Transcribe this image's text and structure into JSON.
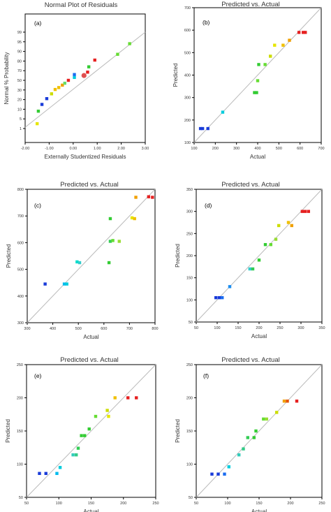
{
  "chart_data": [
    {
      "panel": "(a)",
      "type": "scatter",
      "title": "Normal Plot of Residuals",
      "xlabel": "Externally Studentized Residuals",
      "ylabel": "Normal % Probability",
      "xlim": [
        -2.0,
        3.0
      ],
      "xticks": [
        "-2.00",
        "-1.00",
        "0.00",
        "1.00",
        "2.00",
        "3.00"
      ],
      "yticks": [
        "1",
        "5",
        "10",
        "20",
        "30",
        "50",
        "70",
        "80",
        "90",
        "95",
        "99"
      ],
      "grid": false,
      "fit_line": [
        [
          -2.0,
          1.5
        ],
        [
          3.0,
          99.5
        ]
      ],
      "points": [
        {
          "x": -1.5,
          "y": 3,
          "color": "#e6e600"
        },
        {
          "x": -1.45,
          "y": 9,
          "color": "#33cc33"
        },
        {
          "x": -1.3,
          "y": 15,
          "color": "#1a3cd9"
        },
        {
          "x": -1.1,
          "y": 21,
          "color": "#1a3cd9"
        },
        {
          "x": -0.9,
          "y": 26,
          "color": "#ccdd00"
        },
        {
          "x": -0.75,
          "y": 31,
          "color": "#f0c000"
        },
        {
          "x": -0.6,
          "y": 35,
          "color": "#f0c000"
        },
        {
          "x": -0.45,
          "y": 40,
          "color": "#f0a000"
        },
        {
          "x": -0.35,
          "y": 44,
          "color": "#66dd66"
        },
        {
          "x": -0.2,
          "y": 50,
          "color": "#e62020"
        },
        {
          "x": 0.05,
          "y": 56,
          "color": "#00ccdd"
        },
        {
          "x": 0.05,
          "y": 62,
          "color": "#1a6cf0"
        },
        {
          "x": 0.45,
          "y": 60,
          "color": "#e05050",
          "large": true
        },
        {
          "x": 0.6,
          "y": 67,
          "color": "#e62020"
        },
        {
          "x": 0.65,
          "y": 74,
          "color": "#33cc33"
        },
        {
          "x": 0.9,
          "y": 81,
          "color": "#e62020"
        },
        {
          "x": 1.85,
          "y": 87,
          "color": "#66dd33"
        },
        {
          "x": 2.35,
          "y": 94,
          "color": "#66dd33"
        }
      ]
    },
    {
      "panel": "(b)",
      "type": "scatter",
      "title": "Predicted vs. Actual",
      "xlabel": "Actual",
      "ylabel": "Predicted",
      "xlim": [
        100,
        700
      ],
      "ylim": [
        100,
        700
      ],
      "ticks": [
        100,
        200,
        300,
        400,
        500,
        600,
        700
      ],
      "grid": false,
      "points": [
        {
          "x": 130,
          "y": 162,
          "color": "#1a3cd9"
        },
        {
          "x": 140,
          "y": 162,
          "color": "#1a3cd9"
        },
        {
          "x": 165,
          "y": 162,
          "color": "#1a3cd9"
        },
        {
          "x": 235,
          "y": 235,
          "color": "#00ccdd"
        },
        {
          "x": 385,
          "y": 322,
          "color": "#33cc33"
        },
        {
          "x": 395,
          "y": 322,
          "color": "#33cc33"
        },
        {
          "x": 400,
          "y": 375,
          "color": "#66dd33"
        },
        {
          "x": 405,
          "y": 447,
          "color": "#33cc33"
        },
        {
          "x": 435,
          "y": 447,
          "color": "#66dd33"
        },
        {
          "x": 460,
          "y": 484,
          "color": "#ccdd00"
        },
        {
          "x": 480,
          "y": 533,
          "color": "#e6e600"
        },
        {
          "x": 520,
          "y": 533,
          "color": "#f0c000"
        },
        {
          "x": 550,
          "y": 555,
          "color": "#f0a000"
        },
        {
          "x": 595,
          "y": 590,
          "color": "#e62020"
        },
        {
          "x": 615,
          "y": 590,
          "color": "#e62020"
        },
        {
          "x": 625,
          "y": 590,
          "color": "#e62020"
        }
      ]
    },
    {
      "panel": "(c)",
      "type": "scatter",
      "title": "Predicted vs. Actual",
      "xlabel": "Actual",
      "ylabel": "Predicted",
      "xlim": [
        300,
        800
      ],
      "ylim": [
        300,
        800
      ],
      "ticks": [
        300,
        400,
        500,
        600,
        700,
        800
      ],
      "grid": false,
      "points": [
        {
          "x": 370,
          "y": 445,
          "color": "#1a3cd9"
        },
        {
          "x": 445,
          "y": 445,
          "color": "#00bbee"
        },
        {
          "x": 455,
          "y": 445,
          "color": "#00ccdd"
        },
        {
          "x": 495,
          "y": 528,
          "color": "#00ddcc"
        },
        {
          "x": 505,
          "y": 525,
          "color": "#33cccc"
        },
        {
          "x": 620,
          "y": 525,
          "color": "#33cc33"
        },
        {
          "x": 625,
          "y": 690,
          "color": "#33cc33"
        },
        {
          "x": 625,
          "y": 605,
          "color": "#33cc55"
        },
        {
          "x": 635,
          "y": 608,
          "color": "#66dd33"
        },
        {
          "x": 660,
          "y": 605,
          "color": "#99dd33"
        },
        {
          "x": 710,
          "y": 693,
          "color": "#e6e600"
        },
        {
          "x": 720,
          "y": 690,
          "color": "#f0c000"
        },
        {
          "x": 725,
          "y": 770,
          "color": "#f0a000"
        },
        {
          "x": 775,
          "y": 772,
          "color": "#e62020"
        },
        {
          "x": 790,
          "y": 770,
          "color": "#e62020"
        }
      ]
    },
    {
      "panel": "(d)",
      "type": "scatter",
      "title": "Predicted vs. Actual",
      "xlabel": "Actual",
      "ylabel": "Predicted",
      "xlim": [
        50,
        350
      ],
      "ylim": [
        50,
        350
      ],
      "ticks": [
        50,
        100,
        150,
        200,
        250,
        300,
        350
      ],
      "grid": false,
      "points": [
        {
          "x": 97,
          "y": 105,
          "color": "#1a3cd9"
        },
        {
          "x": 105,
          "y": 105,
          "color": "#1a3cd9"
        },
        {
          "x": 112,
          "y": 105,
          "color": "#1a6cf0"
        },
        {
          "x": 130,
          "y": 130,
          "color": "#1a8cf0"
        },
        {
          "x": 178,
          "y": 170,
          "color": "#33cccc"
        },
        {
          "x": 185,
          "y": 170,
          "color": "#33cc55"
        },
        {
          "x": 200,
          "y": 190,
          "color": "#33cc33"
        },
        {
          "x": 215,
          "y": 225,
          "color": "#33cc33"
        },
        {
          "x": 228,
          "y": 225,
          "color": "#66dd33"
        },
        {
          "x": 240,
          "y": 237,
          "color": "#99dd33"
        },
        {
          "x": 247,
          "y": 268,
          "color": "#ccdd00"
        },
        {
          "x": 270,
          "y": 275,
          "color": "#f0c000"
        },
        {
          "x": 278,
          "y": 268,
          "color": "#f0a000"
        },
        {
          "x": 303,
          "y": 300,
          "color": "#e62020"
        },
        {
          "x": 310,
          "y": 300,
          "color": "#e62020"
        },
        {
          "x": 318,
          "y": 300,
          "color": "#e62020"
        }
      ]
    },
    {
      "panel": "(e)",
      "type": "scatter",
      "title": "Predicted vs. Actual",
      "xlabel": "Actual",
      "ylabel": "Predicted",
      "xlim": [
        50,
        250
      ],
      "ylim": [
        50,
        250
      ],
      "ticks": [
        50,
        100,
        150,
        200,
        250
      ],
      "grid": false,
      "points": [
        {
          "x": 70,
          "y": 86,
          "color": "#1a3cd9"
        },
        {
          "x": 80,
          "y": 86,
          "color": "#1a3cd9"
        },
        {
          "x": 97,
          "y": 86,
          "color": "#00bbee"
        },
        {
          "x": 102,
          "y": 95,
          "color": "#00ccdd"
        },
        {
          "x": 122,
          "y": 114,
          "color": "#33ccbb"
        },
        {
          "x": 127,
          "y": 114,
          "color": "#33cc88"
        },
        {
          "x": 130,
          "y": 124,
          "color": "#33cc55"
        },
        {
          "x": 135,
          "y": 143,
          "color": "#33cc33"
        },
        {
          "x": 140,
          "y": 143,
          "color": "#33cc33"
        },
        {
          "x": 147,
          "y": 153,
          "color": "#33cc33"
        },
        {
          "x": 157,
          "y": 172,
          "color": "#66dd33"
        },
        {
          "x": 175,
          "y": 181,
          "color": "#ccdd00"
        },
        {
          "x": 177,
          "y": 172,
          "color": "#e6e600"
        },
        {
          "x": 187,
          "y": 200,
          "color": "#f0c000"
        },
        {
          "x": 207,
          "y": 200,
          "color": "#e62020"
        },
        {
          "x": 220,
          "y": 200,
          "color": "#e62020"
        }
      ]
    },
    {
      "panel": "(f)",
      "type": "scatter",
      "title": "Predicted vs. Actual",
      "xlabel": "Actual",
      "ylabel": "Predicted",
      "xlim": [
        50,
        250
      ],
      "ylim": [
        50,
        250
      ],
      "ticks": [
        50,
        100,
        150,
        200,
        250
      ],
      "grid": false,
      "points": [
        {
          "x": 75,
          "y": 85,
          "color": "#1a3cd9"
        },
        {
          "x": 85,
          "y": 85,
          "color": "#1a3cd9"
        },
        {
          "x": 95,
          "y": 85,
          "color": "#1a6cf0"
        },
        {
          "x": 102,
          "y": 96,
          "color": "#00ccdd"
        },
        {
          "x": 118,
          "y": 114,
          "color": "#33ccbb"
        },
        {
          "x": 125,
          "y": 123,
          "color": "#33cc88"
        },
        {
          "x": 132,
          "y": 140,
          "color": "#33cc55"
        },
        {
          "x": 142,
          "y": 140,
          "color": "#33cc33"
        },
        {
          "x": 145,
          "y": 150,
          "color": "#33cc33"
        },
        {
          "x": 157,
          "y": 168,
          "color": "#66dd33"
        },
        {
          "x": 162,
          "y": 168,
          "color": "#99dd33"
        },
        {
          "x": 178,
          "y": 178,
          "color": "#ccdd00"
        },
        {
          "x": 190,
          "y": 195,
          "color": "#f0a000"
        },
        {
          "x": 195,
          "y": 195,
          "color": "#e65000"
        },
        {
          "x": 210,
          "y": 195,
          "color": "#e62020"
        }
      ]
    }
  ]
}
